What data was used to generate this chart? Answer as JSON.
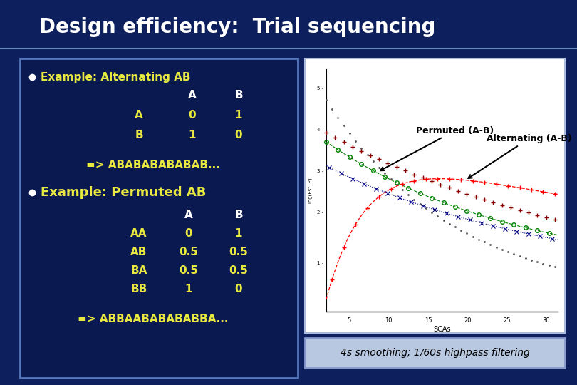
{
  "title": "Design efficiency:  Trial sequencing",
  "bg_color": "#0d1f5c",
  "title_bg": "#0d1f5c",
  "title_color": "#ffffff",
  "left_box_bg": "#0a1a50",
  "left_box_border": "#4466aa",
  "right_box_bg": "#ffffff",
  "right_box_border": "#aabbdd",
  "caption_bg": "#b8c8e8",
  "caption_border": "#8899cc",
  "bullet1": "Example: Alternating AB",
  "bullet2": "Example: Permuted AB",
  "table1_rows": [
    [
      "A",
      "0",
      "1"
    ],
    [
      "B",
      "1",
      "0"
    ]
  ],
  "seq1": "=> ABABABABABAB...",
  "table2_rows": [
    [
      "AA",
      "0",
      "1"
    ],
    [
      "AB",
      "0.5",
      "0.5"
    ],
    [
      "BA",
      "0.5",
      "0.5"
    ],
    [
      "BB",
      "1",
      "0"
    ]
  ],
  "seq2": "=> ABBAABABABABBA...",
  "caption": "4s smoothing; 1/60s highpass filtering",
  "annotation1": "Permuted (A-B)",
  "annotation2": "Alternating (A-B)"
}
